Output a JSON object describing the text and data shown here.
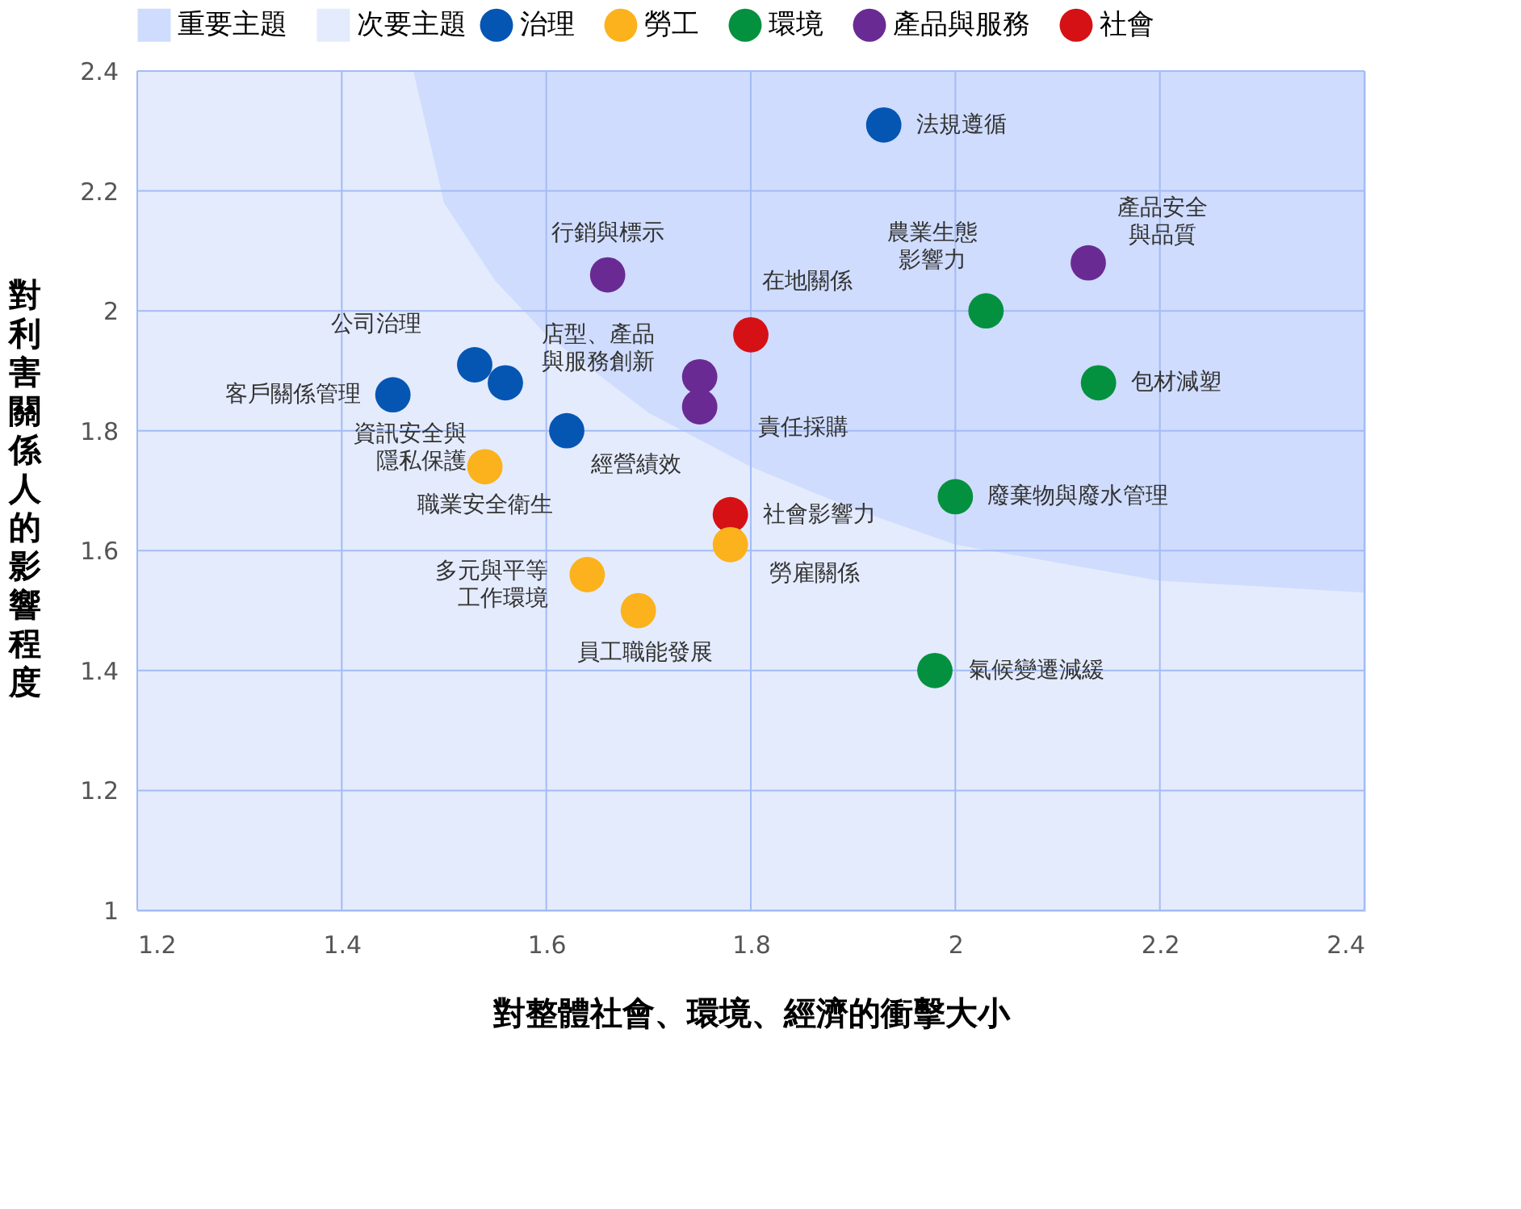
{
  "chart_data": {
    "type": "scatter",
    "xlabel": "對整體社會、環境、經濟的衝擊大小",
    "ylabel": "對利害關係人的影響程度",
    "xlim": [
      1.2,
      2.4
    ],
    "ylim": [
      1.0,
      2.4
    ],
    "xticks": [
      1.2,
      1.4,
      1.6,
      1.8,
      2,
      2.2,
      2.4
    ],
    "yticks": [
      1,
      1.2,
      1.4,
      1.6,
      1.8,
      2,
      2.2,
      2.4
    ],
    "grid": true,
    "legend": "top",
    "bands": [
      {
        "axis": "x",
        "from": 1.2,
        "to": 2.4,
        "label": "重要主題",
        "color": "#cfdcfd"
      }
    ],
    "series": [
      {
        "name": "治理",
        "color": "#0556b3",
        "marker": "circle",
        "x": [
          1.93,
          1.53,
          1.45,
          1.56,
          1.62
        ],
        "values": [
          2.31,
          1.91,
          1.86,
          1.88,
          1.8
        ]
      },
      {
        "name": "勞工",
        "color": "#fbb21c",
        "marker": "circle",
        "x": [
          1.54,
          1.64,
          1.69,
          1.78
        ],
        "values": [
          1.74,
          1.56,
          1.5,
          1.61
        ]
      },
      {
        "name": "環境",
        "color": "#03913f",
        "marker": "circle",
        "x": [
          2.03,
          2.14,
          2.0,
          1.98
        ],
        "values": [
          2.0,
          1.88,
          1.69,
          1.4
        ]
      },
      {
        "name": "產品與服務",
        "color": "#6a2a93",
        "marker": "circle",
        "x": [
          1.66,
          1.75,
          1.75,
          2.13
        ],
        "values": [
          2.06,
          1.89,
          1.84,
          2.08
        ]
      },
      {
        "name": "社會",
        "color": "#d51115",
        "marker": "circle",
        "x": [
          1.8,
          1.78
        ],
        "values": [
          1.96,
          1.66
        ]
      },
      {
        "name": "次要主題",
        "type": "area",
        "color": "#e4ebfd",
        "x": [
          1.2,
          1.47,
          1.5,
          1.55,
          1.6,
          1.7,
          1.8,
          1.9,
          2.0,
          2.1,
          2.2,
          2.3,
          2.4
        ],
        "values": [
          2.4,
          2.4,
          2.18,
          2.05,
          1.96,
          1.83,
          1.74,
          1.67,
          1.61,
          1.58,
          1.55,
          1.54,
          1.53
        ]
      }
    ],
    "annotations": [
      {
        "text": "法規遵循",
        "x": 1.93,
        "y": 2.31
      },
      {
        "text": "公司治理",
        "x": 1.53,
        "y": 1.91
      },
      {
        "text": "客戶關係管理",
        "x": 1.45,
        "y": 1.86
      },
      {
        "text": "資訊安全與隱私保護",
        "x": 1.56,
        "y": 1.88
      },
      {
        "text": "經營績效",
        "x": 1.62,
        "y": 1.8
      },
      {
        "text": "職業安全衛生",
        "x": 1.54,
        "y": 1.74
      },
      {
        "text": "多元與平等工作環境",
        "x": 1.64,
        "y": 1.56
      },
      {
        "text": "員工職能發展",
        "x": 1.69,
        "y": 1.5
      },
      {
        "text": "勞雇關係",
        "x": 1.78,
        "y": 1.61
      },
      {
        "text": "農業生態影響力",
        "x": 2.03,
        "y": 2.0
      },
      {
        "text": "包材減塑",
        "x": 2.14,
        "y": 1.88
      },
      {
        "text": "廢棄物與廢水管理",
        "x": 2.0,
        "y": 1.69
      },
      {
        "text": "氣候變遷減緩",
        "x": 1.98,
        "y": 1.4
      },
      {
        "text": "行銷與標示",
        "x": 1.66,
        "y": 2.06
      },
      {
        "text": "店型、產品與服務創新",
        "x": 1.75,
        "y": 1.89
      },
      {
        "text": "責任採購",
        "x": 1.75,
        "y": 1.84
      },
      {
        "text": "產品安全與品質",
        "x": 2.13,
        "y": 2.08
      },
      {
        "text": "在地關係",
        "x": 1.8,
        "y": 1.96
      },
      {
        "text": "社會影響力",
        "x": 1.78,
        "y": 1.66
      }
    ]
  }
}
